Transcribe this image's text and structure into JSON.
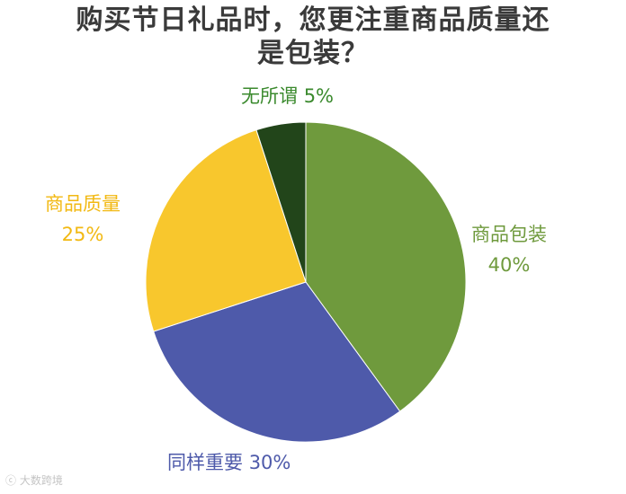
{
  "chart_data": {
    "type": "pie",
    "title_lines": [
      "购买节日礼品时，您更注重商品质量还",
      "是包装？"
    ],
    "slices": [
      {
        "name": "商品包装",
        "value": 40,
        "label_pct": "40%",
        "color": "#6f9a3d"
      },
      {
        "name": "同样重要",
        "value": 30,
        "label_pct": "30%",
        "color": "#4e5aaa"
      },
      {
        "name": "商品质量",
        "value": 25,
        "label_pct": "25%",
        "color": "#f8c72d"
      },
      {
        "name": "无所谓",
        "value": 5,
        "label_pct": "5%",
        "color": "#22451a"
      }
    ],
    "label_colors": {
      "packaging": "#6f9a3d",
      "both": "#4e5aaa",
      "quality": "#f2b913",
      "indifferent": "#3b8a2e"
    }
  },
  "watermark": "大数跨境"
}
